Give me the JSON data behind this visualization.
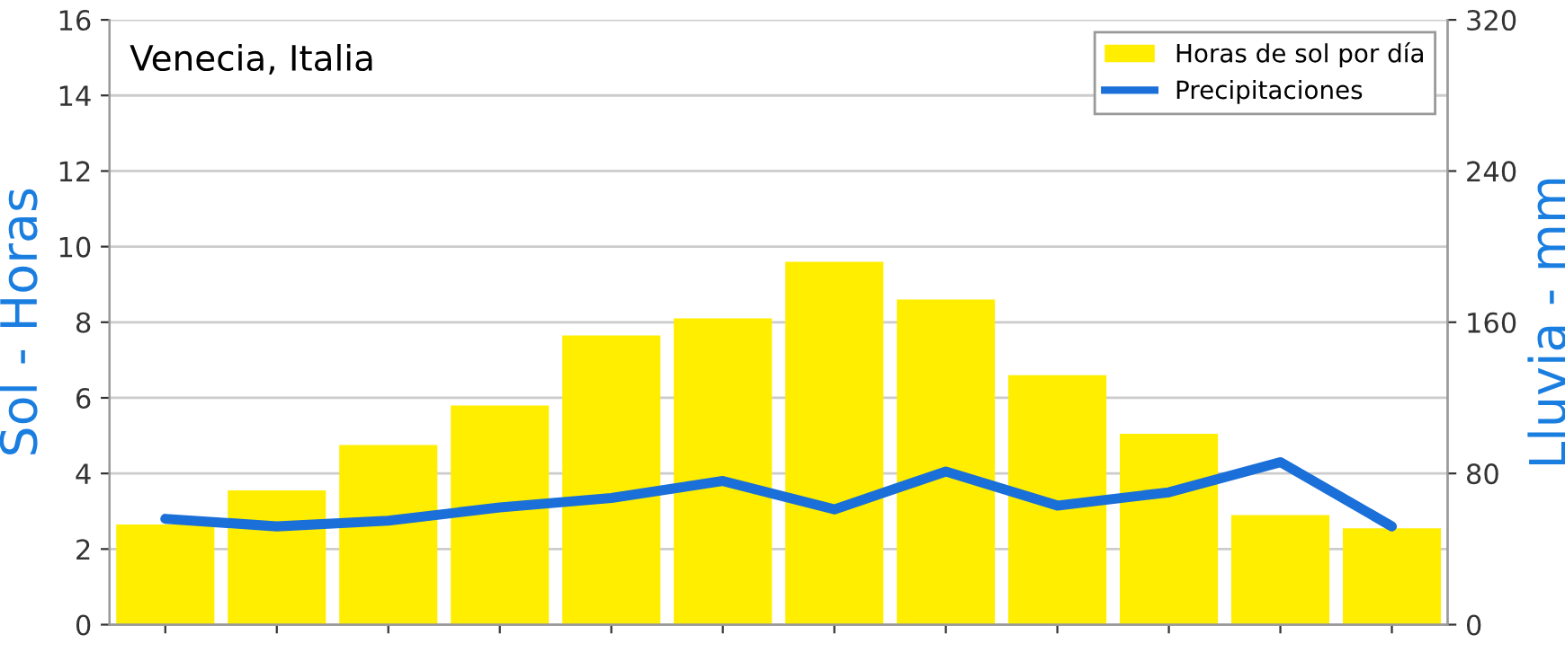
{
  "chart_data": {
    "type": "bar",
    "title": "Venecia, Italia",
    "ylabel": "Sol - Horas",
    "y2label": "Lluvia - mm",
    "categories": [
      null,
      null,
      null,
      null,
      null,
      null,
      null,
      null,
      null,
      null,
      null,
      null
    ],
    "series": [
      {
        "name": "Horas de sol por día",
        "color": "#ffee00",
        "values": [
          2.65,
          3.55,
          4.75,
          5.8,
          7.65,
          8.1,
          9.6,
          8.6,
          6.6,
          5.05,
          2.9,
          2.55
        ]
      },
      {
        "name": "Precipitaciones",
        "type": "line",
        "axis": "y2",
        "color": "#1a6fd8",
        "values": [
          56,
          52,
          55,
          62,
          67,
          76,
          61,
          81,
          63,
          70,
          86,
          52
        ]
      }
    ],
    "ylim": [
      0,
      16
    ],
    "yticks": [
      0,
      2,
      4,
      6,
      8,
      10,
      12,
      14,
      16
    ],
    "y2lim": [
      0,
      320
    ],
    "y2ticks": [
      0,
      80,
      160,
      240,
      320
    ],
    "grid": "y",
    "legend": "top right",
    "marker": "none",
    "line_style": "solid"
  }
}
